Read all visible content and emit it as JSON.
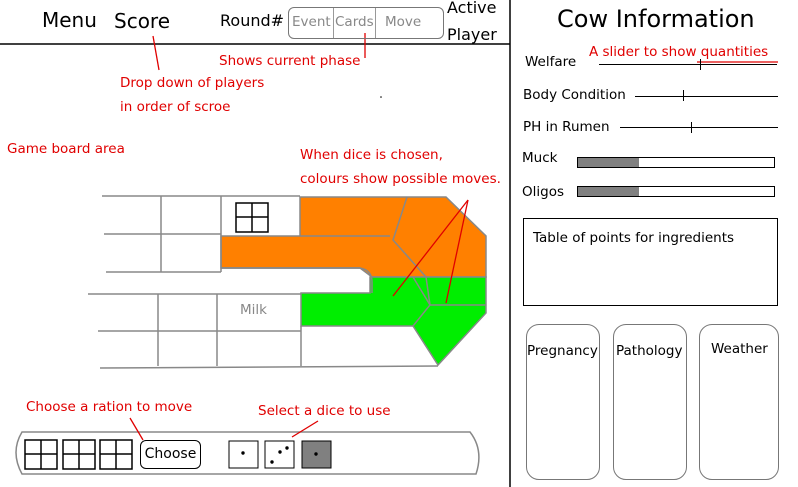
{
  "header": {
    "menu_label": "Menu",
    "score_label": "Score",
    "round_label": "Round#",
    "phases": [
      "Event",
      "Cards",
      "Move"
    ],
    "active_player_line1": "Active",
    "active_player_line2": "Player"
  },
  "annotations": {
    "shows_phase": "Shows current phase",
    "dropdown_line1": "Drop down of players",
    "dropdown_line2": "in order of scroe",
    "board_area": "Game board area",
    "dice_line1": "When dice is chosen,",
    "dice_line2": "colours show possible moves.",
    "choose_ration": "Choose a ration to move",
    "select_dice": "Select a dice to use",
    "slider_note": "A slider to show quantities"
  },
  "board": {
    "milk_label": "Milk",
    "colors": {
      "highlight_orange": "#ff8000",
      "highlight_green": "#00ee00"
    }
  },
  "bottom_bar": {
    "choose_label": "Choose"
  },
  "cow_panel": {
    "title": "Cow Information",
    "sliders": [
      {
        "label": "Welfare",
        "level": 0.56
      },
      {
        "label": "Body Condition",
        "level": 0.34
      },
      {
        "label": "PH in Rumen",
        "level": 0.39
      }
    ],
    "bars": [
      {
        "label": "Muck",
        "fill": 0.31
      },
      {
        "label": "Oligos",
        "fill": 0.31
      }
    ],
    "table_text": "Table of points for ingredients",
    "cards": [
      "Pregnancy",
      "Pathology",
      "Weather"
    ]
  }
}
